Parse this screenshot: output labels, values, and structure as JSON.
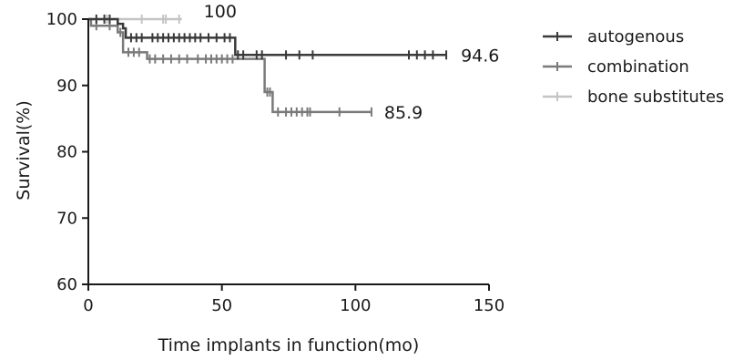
{
  "chart_data": {
    "type": "line",
    "title": "",
    "xlabel": "Time implants in function(mo)",
    "ylabel": "Survival(%)",
    "xlim": [
      0,
      150
    ],
    "ylim": [
      60,
      100
    ],
    "xticks": [
      0,
      50,
      100,
      150
    ],
    "yticks": [
      60,
      70,
      80,
      90,
      100
    ],
    "grid": false,
    "legend_position": "right",
    "series": [
      {
        "name": "autogenous",
        "color": "#3a3a3a",
        "steps": [
          [
            0,
            100
          ],
          [
            11,
            99.3
          ],
          [
            13,
            98.6
          ],
          [
            14,
            97.2
          ],
          [
            55,
            94.6
          ],
          [
            134,
            94.6
          ]
        ],
        "censored": [
          3,
          6,
          8,
          16,
          18,
          20,
          24,
          26,
          28,
          30,
          32,
          34,
          36,
          38,
          40,
          42,
          45,
          48,
          51,
          53,
          56,
          58,
          63,
          65,
          74,
          79,
          84,
          120,
          123,
          126,
          129,
          134
        ],
        "end_label": "94.6"
      },
      {
        "name": "combination",
        "color": "#7a7a7a",
        "steps": [
          [
            0,
            100
          ],
          [
            1,
            99
          ],
          [
            11,
            98
          ],
          [
            13,
            95
          ],
          [
            22,
            94
          ],
          [
            66,
            89
          ],
          [
            69,
            86
          ],
          [
            106,
            86
          ]
        ],
        "censored": [
          3,
          8,
          12,
          15,
          17,
          19,
          23,
          25,
          28,
          31,
          34,
          37,
          41,
          44,
          46,
          48,
          50,
          52,
          54,
          67,
          68,
          71,
          74,
          76,
          78,
          80,
          82,
          83,
          94,
          106
        ],
        "end_label": "85.9"
      },
      {
        "name": "bone substitutes",
        "color": "#c4c4c4",
        "steps": [
          [
            0,
            100
          ],
          [
            35,
            100
          ]
        ],
        "censored": [
          6,
          7,
          20,
          28,
          29,
          34
        ],
        "end_label": "100"
      }
    ]
  }
}
